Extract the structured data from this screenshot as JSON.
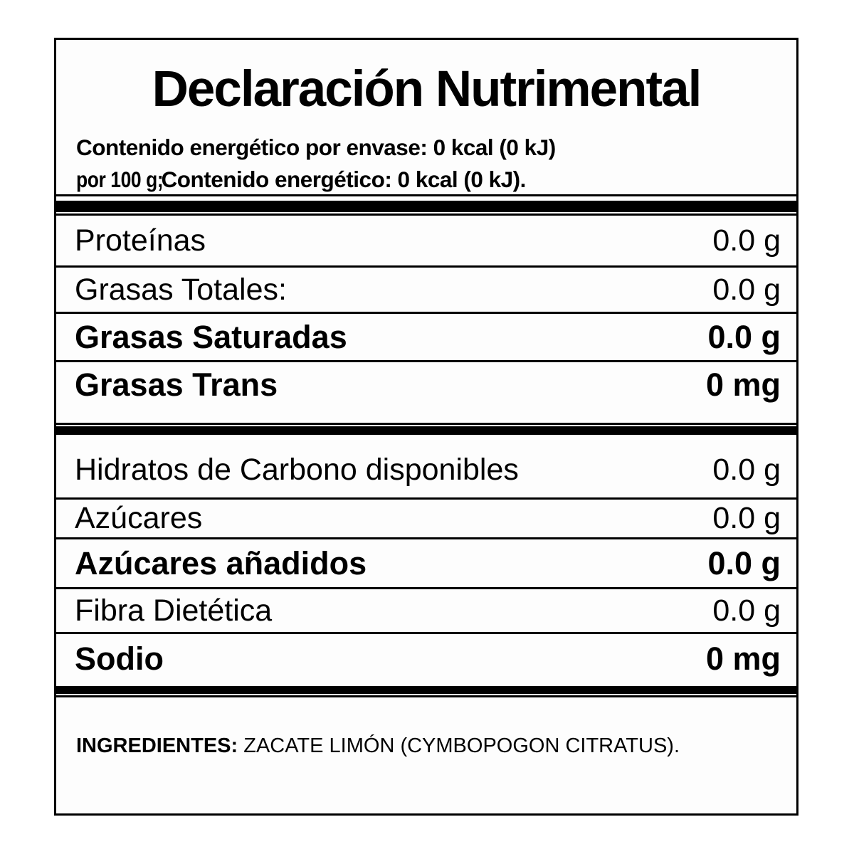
{
  "title": "Declaración Nutrimental",
  "energy": {
    "line1": "Contenido energético por envase: 0 kcal (0 kJ)",
    "line2_prefix": "por 100 g; ",
    "line2_main": "Contenido energético: 0 kcal (0 kJ)."
  },
  "section1": {
    "rows": [
      {
        "label": "Proteínas",
        "value": "0.0 g"
      },
      {
        "label": "Grasas Totales:",
        "value": "0.0 g"
      },
      {
        "label": "Grasas Saturadas",
        "value": "0.0 g"
      },
      {
        "label": "Grasas Trans",
        "value": "0 mg"
      }
    ]
  },
  "section2": {
    "rows": [
      {
        "label": "Hidratos de Carbono disponibles",
        "value": "0.0 g"
      },
      {
        "label": "Azúcares",
        "value": "0.0 g"
      },
      {
        "label": "Azúcares añadidos",
        "value": "0.0 g"
      },
      {
        "label": "Fibra Dietética",
        "value": "0.0 g"
      },
      {
        "label": "Sodio",
        "value": "0 mg"
      }
    ]
  },
  "ingredients": {
    "label": "INGREDIENTES:",
    "text": " ZACATE LIMÓN (CYMBOPOGON CITRATUS)."
  },
  "colors": {
    "text": "#000000",
    "background": "#ffffff",
    "divider": "#000000"
  }
}
